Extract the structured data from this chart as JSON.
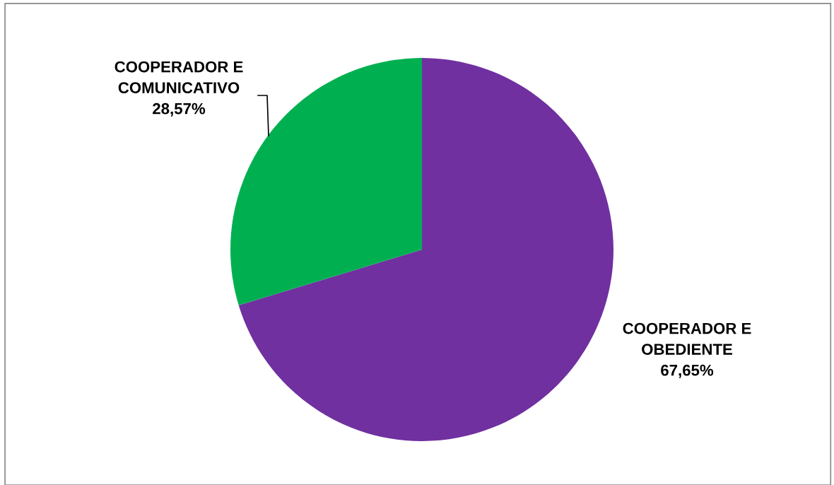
{
  "chart_data": {
    "type": "pie",
    "categories": [
      "COOPERADOR E\nOBEDIENTE",
      "COOPERADOR E\nCOMUNICATIVO"
    ],
    "values": [
      67.65,
      28.57
    ],
    "colors": [
      "#7030a0",
      "#00b050"
    ],
    "value_labels": [
      "67,65%",
      "28,57%"
    ],
    "legend": false
  }
}
